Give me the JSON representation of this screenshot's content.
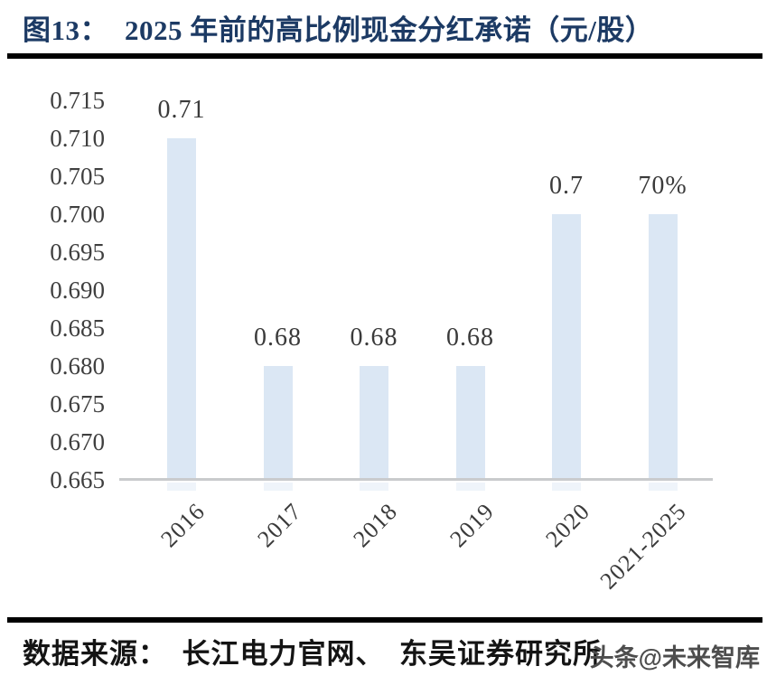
{
  "header": {
    "figure_label": "图13：",
    "title": "2025 年前的高比例现金分红承诺（元/股）"
  },
  "chart_data": {
    "type": "bar",
    "title": "2025 年前的高比例现金分红承诺（元/股）",
    "categories": [
      "2016",
      "2017",
      "2018",
      "2019",
      "2020",
      "2021-2025"
    ],
    "values": [
      0.71,
      0.68,
      0.68,
      0.68,
      0.7,
      0.7
    ],
    "bar_labels": [
      "0.71",
      "0.68",
      "0.68",
      "0.68",
      "0.7",
      "70%"
    ],
    "xlabel": "",
    "ylabel": "",
    "ylim": [
      0.665,
      0.715
    ],
    "ytick_step": 0.005,
    "yticks": [
      "0.715",
      "0.710",
      "0.705",
      "0.700",
      "0.695",
      "0.690",
      "0.685",
      "0.680",
      "0.675",
      "0.670",
      "0.665"
    ],
    "grid": false,
    "legend": false,
    "bar_color": "#dbe7f4",
    "axis_line_color": "#c9cbcd",
    "label_color": "#3a3a3a",
    "tick_color": "#3f3f3f"
  },
  "footer": {
    "source": "数据来源：　长江电力官网、　东吴证券研究所",
    "watermark": "头条@未来智库"
  },
  "colors": {
    "title": "#1c3a64",
    "divider": "#000000"
  }
}
